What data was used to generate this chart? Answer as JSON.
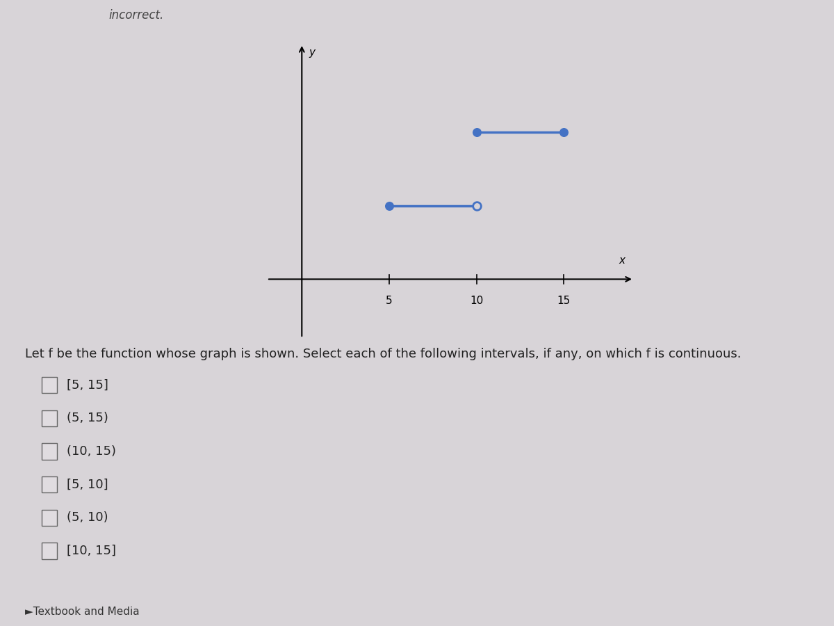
{
  "background_color": "#d8d4d8",
  "top_bar_color": "#b8b4bc",
  "graph_bg": "#d8d4d8",
  "line_color": "#4472C4",
  "line_width": 2.5,
  "segment1": {
    "x_start": 5,
    "x_end": 10,
    "y": 1,
    "left_closed": true,
    "right_closed": false
  },
  "segment2": {
    "x_start": 10,
    "x_end": 15,
    "y": 2,
    "left_closed": true,
    "right_closed": true
  },
  "dot_size": 70,
  "x_ticks": [
    5,
    10,
    15
  ],
  "x_label": "x",
  "y_label": "y",
  "x_min": -2,
  "x_max": 19,
  "y_min": -0.8,
  "y_max": 3.2,
  "question_text": "Let f be the function whose graph is shown. Select each of the following intervals, if any, on which f is continuous.",
  "checkbox_labels": [
    "[5, 15]",
    "(5, 15)",
    "(10, 15)",
    "[5, 10]",
    "(5, 10)",
    "[10, 15]"
  ],
  "footer_text": "►Textbook and Media",
  "header_text": "incorrect.",
  "label_fontsize": 11,
  "checkbox_fontsize": 13,
  "question_fontsize": 13
}
